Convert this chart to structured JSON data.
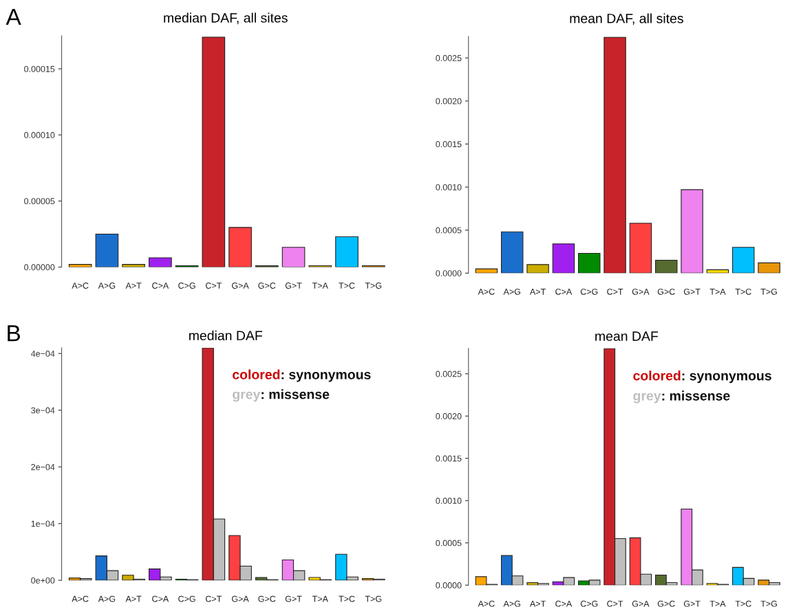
{
  "chart_data": [
    {
      "type": "bar",
      "title": "median DAF, all sites",
      "annotations": [
        "A"
      ],
      "categories": [
        "A>C",
        "A>G",
        "A>T",
        "C>A",
        "C>G",
        "C>T",
        "G>A",
        "G>C",
        "G>T",
        "T>A",
        "T>C",
        "T>G"
      ],
      "values": [
        2e-06,
        2.5e-05,
        2e-06,
        7e-06,
        1e-06,
        0.000174,
        3e-05,
        1e-06,
        1.5e-05,
        1e-06,
        2.3e-05,
        1e-06
      ],
      "colors": [
        "#ffa500",
        "#1b6fcc",
        "#ccad00",
        "#a020f0",
        "#008b00",
        "#c8232a",
        "#ff4040",
        "#556b2f",
        "#ee82ee",
        "#ffd700",
        "#00bfff",
        "#e8950a"
      ],
      "ylim": [
        0,
        0.000175
      ],
      "yticks": [
        {
          "value": 0,
          "label": "0.00000"
        },
        {
          "value": 5e-05,
          "label": "0.00005"
        },
        {
          "value": 0.0001,
          "label": "0.00010"
        },
        {
          "value": 0.00015,
          "label": "0.00015"
        }
      ]
    },
    {
      "type": "bar",
      "title": "mean DAF, all sites",
      "categories": [
        "A>C",
        "A>G",
        "A>T",
        "C>A",
        "C>G",
        "C>T",
        "G>A",
        "G>C",
        "G>T",
        "T>A",
        "T>C",
        "T>G"
      ],
      "values": [
        5e-05,
        0.00048,
        0.0001,
        0.00034,
        0.00023,
        0.00274,
        0.00058,
        0.00015,
        0.00097,
        4e-05,
        0.0003,
        0.00012
      ],
      "colors": [
        "#ffa500",
        "#1b6fcc",
        "#ccad00",
        "#a020f0",
        "#008b00",
        "#c8232a",
        "#ff4040",
        "#556b2f",
        "#ee82ee",
        "#ffd700",
        "#00bfff",
        "#e8950a"
      ],
      "ylim": [
        0,
        0.00275
      ],
      "yticks": [
        {
          "value": 0,
          "label": "0.0000"
        },
        {
          "value": 0.0005,
          "label": "0.0005"
        },
        {
          "value": 0.001,
          "label": "0.0010"
        },
        {
          "value": 0.0015,
          "label": "0.0015"
        },
        {
          "value": 0.002,
          "label": "0.0020"
        },
        {
          "value": 0.0025,
          "label": "0.0025"
        }
      ]
    },
    {
      "type": "bar",
      "title": "median DAF",
      "annotations": [
        "B"
      ],
      "legend": "top right",
      "categories": [
        "A>C",
        "A>G",
        "A>T",
        "C>A",
        "C>G",
        "C>T",
        "G>A",
        "G>C",
        "G>T",
        "T>A",
        "T>C",
        "T>G"
      ],
      "series": [
        {
          "name": "colored: synonymous",
          "color": "#cc0000",
          "colors": [
            "#ffa500",
            "#1b6fcc",
            "#ccad00",
            "#a020f0",
            "#008b00",
            "#c8232a",
            "#ff4040",
            "#556b2f",
            "#ee82ee",
            "#ffd700",
            "#00bfff",
            "#e8950a"
          ],
          "values": [
            4e-06,
            4.3e-05,
            9e-06,
            2e-05,
            2e-06,
            0.00041,
            7.9e-05,
            5e-06,
            3.6e-05,
            5e-06,
            4.6e-05,
            3e-06
          ]
        },
        {
          "name": "grey: missense",
          "color": "#bebebe",
          "values": [
            3e-06,
            1.7e-05,
            2e-06,
            6e-06,
            1e-06,
            0.000108,
            2.5e-05,
            1e-06,
            1.7e-05,
            1e-06,
            6e-06,
            2e-06
          ]
        }
      ],
      "ylim": [
        0,
        0.00041
      ],
      "yticks": [
        {
          "value": 0,
          "label": "0e+00"
        },
        {
          "value": 0.0001,
          "label": "1e−04"
        },
        {
          "value": 0.0002,
          "label": "2e−04"
        },
        {
          "value": 0.0003,
          "label": "3e−04"
        },
        {
          "value": 0.0004,
          "label": "4e−04"
        }
      ]
    },
    {
      "type": "bar",
      "title": "mean DAF",
      "legend": "top right",
      "categories": [
        "A>C",
        "A>G",
        "A>T",
        "C>A",
        "C>G",
        "C>T",
        "G>A",
        "G>C",
        "G>T",
        "T>A",
        "T>C",
        "T>G"
      ],
      "series": [
        {
          "name": "colored: synonymous",
          "color": "#cc0000",
          "colors": [
            "#ffa500",
            "#1b6fcc",
            "#ccad00",
            "#a020f0",
            "#008b00",
            "#c8232a",
            "#ff4040",
            "#556b2f",
            "#ee82ee",
            "#ffd700",
            "#00bfff",
            "#e8950a"
          ],
          "values": [
            0.0001,
            0.00035,
            3e-05,
            4e-05,
            5e-05,
            0.0028,
            0.00056,
            0.00012,
            0.0009,
            2e-05,
            0.00021,
            6e-05
          ]
        },
        {
          "name": "grey: missense",
          "color": "#bebebe",
          "values": [
            1e-05,
            0.00011,
            2e-05,
            9e-05,
            6e-05,
            0.00055,
            0.00013,
            3e-05,
            0.00018,
            1e-05,
            8e-05,
            3e-05
          ]
        }
      ],
      "ylim": [
        0,
        0.0028
      ],
      "yticks": [
        {
          "value": 0,
          "label": "0.0000"
        },
        {
          "value": 0.0005,
          "label": "0.0005"
        },
        {
          "value": 0.001,
          "label": "0.0010"
        },
        {
          "value": 0.0015,
          "label": "0.0015"
        },
        {
          "value": 0.002,
          "label": "0.0020"
        },
        {
          "value": 0.0025,
          "label": "0.0025"
        }
      ]
    }
  ]
}
